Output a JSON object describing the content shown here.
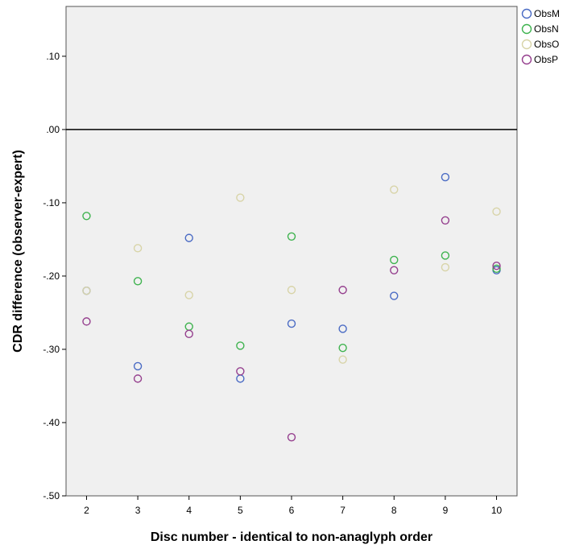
{
  "chart_data": {
    "type": "scatter",
    "xlabel": "Disc number - identical to non-anaglyph order",
    "ylabel": "CDR difference (observer-expert)",
    "x_ticks": [
      2,
      3,
      4,
      5,
      6,
      7,
      8,
      9,
      10
    ],
    "x_tick_labels": [
      "2",
      "3",
      "4",
      "5",
      "6",
      "7",
      "8",
      "9",
      "10"
    ],
    "y_ticks": [
      -0.5,
      -0.4,
      -0.3,
      -0.2,
      -0.1,
      0.0,
      0.1
    ],
    "y_tick_labels": [
      "-.50",
      "-.40",
      "-.30",
      "-.20",
      "-.10",
      ".00",
      ".10"
    ],
    "xlim": [
      1.6,
      10.4
    ],
    "ylim": [
      -0.5,
      0.168
    ],
    "reference_line_y": 0.0,
    "grid": false,
    "legend_position": "top-right",
    "series": [
      {
        "name": "ObsM",
        "color": "#4a6bc4",
        "x": [
          2,
          3,
          4,
          5,
          6,
          7,
          8,
          9,
          10
        ],
        "y": [
          -0.22,
          -0.323,
          -0.148,
          -0.34,
          -0.265,
          -0.272,
          -0.227,
          -0.065,
          -0.192
        ]
      },
      {
        "name": "ObsN",
        "color": "#3fb34f",
        "x": [
          2,
          3,
          4,
          5,
          6,
          7,
          8,
          9,
          10
        ],
        "y": [
          -0.118,
          -0.207,
          -0.269,
          -0.295,
          -0.146,
          -0.298,
          -0.178,
          -0.172,
          -0.19
        ]
      },
      {
        "name": "ObsO",
        "color": "#d8d4a8",
        "x": [
          2,
          3,
          4,
          5,
          6,
          7,
          8,
          9,
          10
        ],
        "y": [
          -0.22,
          -0.162,
          -0.226,
          -0.093,
          -0.219,
          -0.314,
          -0.082,
          -0.188,
          -0.112
        ]
      },
      {
        "name": "ObsP",
        "color": "#953f8e",
        "x": [
          2,
          3,
          4,
          5,
          6,
          7,
          8,
          9,
          10
        ],
        "y": [
          -0.262,
          -0.34,
          -0.279,
          -0.33,
          -0.42,
          -0.219,
          -0.192,
          -0.124,
          -0.186
        ]
      }
    ]
  }
}
